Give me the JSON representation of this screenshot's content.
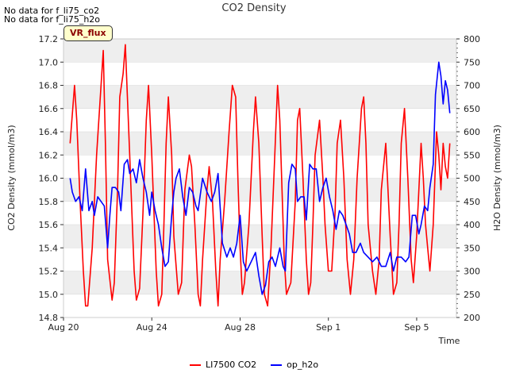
{
  "notes": [
    "No data for f_li75_co2",
    "No data for f_li75_h2o"
  ],
  "badge": "VR_flux",
  "colors": {
    "co2": "#ff0000",
    "h2o": "#0000ff",
    "band": "#eeeeee",
    "grid": "#d8d8d8"
  },
  "chart_data": {
    "type": "line",
    "title": "CO2 Density",
    "xlabel": "Time",
    "ylabel": "CO2 Density (mmol/m3)",
    "y2label": "H2O Density (mmol/m3)",
    "x_range_days": [
      0,
      17.8
    ],
    "xticks": [
      {
        "day": 0,
        "label": "Aug 20"
      },
      {
        "day": 4,
        "label": "Aug 24"
      },
      {
        "day": 8,
        "label": "Aug 28"
      },
      {
        "day": 12,
        "label": "Sep 1"
      },
      {
        "day": 16,
        "label": "Sep 5"
      }
    ],
    "ylim": [
      14.8,
      17.2
    ],
    "yticks": [
      "14.8",
      "15.0",
      "15.2",
      "15.4",
      "15.6",
      "15.8",
      "16.0",
      "16.2",
      "16.4",
      "16.6",
      "16.8",
      "17.0",
      "17.2"
    ],
    "y2lim": [
      200,
      800
    ],
    "y2ticks": [
      "200",
      "250",
      "300",
      "350",
      "400",
      "450",
      "500",
      "550",
      "600",
      "650",
      "700",
      "750",
      "800"
    ],
    "grid": true,
    "legend_position": "bottom-center",
    "series": [
      {
        "name": "LI7500 CO2",
        "axis": "left",
        "x": [
          0.3,
          0.5,
          0.6,
          0.75,
          0.9,
          1.0,
          1.1,
          1.3,
          1.5,
          1.7,
          1.8,
          1.9,
          2.0,
          2.2,
          2.3,
          2.45,
          2.55,
          2.7,
          2.8,
          3.0,
          3.2,
          3.3,
          3.45,
          3.6,
          3.75,
          3.85,
          4.0,
          4.2,
          4.3,
          4.45,
          4.55,
          4.65,
          4.75,
          4.9,
          5.0,
          5.2,
          5.35,
          5.5,
          5.7,
          5.8,
          5.95,
          6.1,
          6.2,
          6.3,
          6.5,
          6.6,
          6.75,
          6.9,
          7.0,
          7.1,
          7.3,
          7.5,
          7.65,
          7.8,
          7.9,
          8.0,
          8.1,
          8.2,
          8.4,
          8.6,
          8.7,
          8.85,
          9.0,
          9.1,
          9.25,
          9.4,
          9.55,
          9.7,
          9.8,
          9.9,
          10.0,
          10.1,
          10.3,
          10.5,
          10.6,
          10.7,
          10.85,
          11.0,
          11.1,
          11.2,
          11.3,
          11.4,
          11.6,
          11.75,
          11.85,
          12.0,
          12.15,
          12.3,
          12.4,
          12.55,
          12.7,
          12.85,
          13.0,
          13.15,
          13.3,
          13.5,
          13.6,
          13.7,
          13.8,
          14.0,
          14.15,
          14.3,
          14.4,
          14.6,
          14.8,
          14.95,
          15.1,
          15.2,
          15.3,
          15.45,
          15.6,
          15.75,
          15.85,
          16.0,
          16.2,
          16.3,
          16.4,
          16.5,
          16.6,
          16.75,
          16.9,
          17.0,
          17.1,
          17.2,
          17.3,
          17.4,
          17.5
        ],
        "values": [
          16.3,
          16.8,
          16.5,
          15.8,
          15.2,
          14.9,
          14.9,
          15.4,
          16.2,
          16.8,
          17.1,
          16.3,
          15.3,
          14.95,
          15.1,
          15.9,
          16.7,
          16.9,
          17.15,
          16.2,
          15.2,
          14.95,
          15.05,
          15.7,
          16.5,
          16.8,
          16.2,
          15.2,
          14.9,
          15.0,
          15.6,
          16.3,
          16.7,
          16.2,
          15.5,
          15.0,
          15.1,
          15.9,
          16.2,
          16.1,
          15.6,
          15.0,
          14.9,
          15.3,
          15.9,
          16.1,
          15.8,
          15.2,
          14.9,
          15.3,
          15.8,
          16.4,
          16.8,
          16.7,
          16.0,
          15.4,
          15.0,
          15.1,
          15.6,
          16.4,
          16.7,
          16.3,
          15.5,
          15.0,
          14.9,
          15.4,
          16.1,
          16.8,
          16.5,
          15.9,
          15.3,
          15.0,
          15.1,
          15.8,
          16.5,
          16.6,
          16.0,
          15.3,
          15.0,
          15.1,
          15.6,
          16.2,
          16.5,
          16.0,
          15.6,
          15.2,
          15.2,
          15.7,
          16.3,
          16.5,
          16.0,
          15.3,
          15.0,
          15.3,
          16.0,
          16.6,
          16.7,
          16.3,
          15.6,
          15.2,
          15.0,
          15.3,
          15.9,
          16.3,
          15.5,
          15.0,
          15.1,
          15.6,
          16.3,
          16.6,
          16.0,
          15.3,
          15.1,
          15.5,
          16.3,
          16.0,
          15.6,
          15.4,
          15.2,
          15.6,
          16.4,
          16.2,
          15.9,
          16.3,
          16.1,
          16.0,
          16.3
        ]
      },
      {
        "name": "op_h2o",
        "axis": "right",
        "x": [
          0.3,
          0.4,
          0.55,
          0.7,
          0.85,
          1.0,
          1.15,
          1.3,
          1.4,
          1.55,
          1.7,
          1.85,
          2.0,
          2.1,
          2.2,
          2.35,
          2.5,
          2.6,
          2.75,
          2.9,
          3.0,
          3.15,
          3.3,
          3.45,
          3.6,
          3.75,
          3.9,
          4.0,
          4.15,
          4.3,
          4.45,
          4.6,
          4.75,
          4.9,
          5.0,
          5.1,
          5.25,
          5.4,
          5.55,
          5.7,
          5.85,
          6.0,
          6.1,
          6.3,
          6.5,
          6.7,
          6.85,
          7.0,
          7.2,
          7.4,
          7.55,
          7.7,
          7.85,
          8.0,
          8.15,
          8.3,
          8.5,
          8.7,
          8.85,
          9.0,
          9.15,
          9.3,
          9.45,
          9.6,
          9.8,
          9.95,
          10.05,
          10.2,
          10.35,
          10.5,
          10.6,
          10.75,
          10.9,
          11.0,
          11.15,
          11.3,
          11.45,
          11.6,
          11.75,
          11.9,
          12.05,
          12.2,
          12.35,
          12.5,
          12.65,
          12.8,
          12.95,
          13.1,
          13.25,
          13.45,
          13.6,
          13.8,
          14.0,
          14.2,
          14.4,
          14.6,
          14.8,
          14.95,
          15.1,
          15.3,
          15.5,
          15.65,
          15.8,
          15.95,
          16.1,
          16.2,
          16.35,
          16.5,
          16.6,
          16.75,
          16.85,
          17.0,
          17.1,
          17.2,
          17.3,
          17.4,
          17.5
        ],
        "values": [
          500,
          470,
          450,
          460,
          430,
          520,
          430,
          450,
          420,
          460,
          450,
          440,
          350,
          420,
          480,
          480,
          470,
          430,
          530,
          540,
          510,
          520,
          490,
          540,
          500,
          470,
          420,
          470,
          430,
          400,
          350,
          310,
          320,
          420,
          470,
          500,
          520,
          460,
          420,
          480,
          470,
          440,
          430,
          500,
          470,
          450,
          470,
          510,
          360,
          330,
          350,
          330,
          360,
          420,
          320,
          300,
          320,
          340,
          290,
          250,
          270,
          320,
          330,
          310,
          350,
          310,
          300,
          490,
          530,
          520,
          450,
          460,
          460,
          410,
          530,
          520,
          520,
          450,
          480,
          500,
          460,
          430,
          390,
          430,
          420,
          400,
          380,
          340,
          340,
          360,
          340,
          330,
          320,
          330,
          310,
          310,
          340,
          300,
          330,
          330,
          320,
          330,
          420,
          420,
          380,
          400,
          440,
          430,
          480,
          530,
          680,
          750,
          720,
          660,
          710,
          690,
          640
        ]
      }
    ]
  }
}
